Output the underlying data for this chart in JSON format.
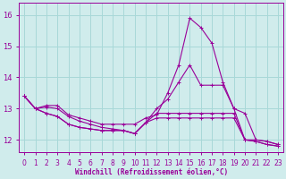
{
  "xlabel": "Windchill (Refroidissement éolien,°C)",
  "background_color": "#d0ecec",
  "grid_color": "#a8d8d8",
  "line_color": "#990099",
  "x_values": [
    0,
    1,
    2,
    3,
    4,
    5,
    6,
    7,
    8,
    9,
    10,
    11,
    12,
    13,
    14,
    15,
    16,
    17,
    18,
    19,
    20,
    21,
    22,
    23
  ],
  "series": [
    [
      13.4,
      13.0,
      13.1,
      13.1,
      12.8,
      12.7,
      12.6,
      12.5,
      12.5,
      12.5,
      12.5,
      12.7,
      12.8,
      13.5,
      14.4,
      15.9,
      15.6,
      15.1,
      13.85,
      13.0,
      12.0,
      12.0,
      11.95,
      11.85
    ],
    [
      13.4,
      13.0,
      13.05,
      13.0,
      12.75,
      12.6,
      12.5,
      12.4,
      12.35,
      12.3,
      12.2,
      12.55,
      13.0,
      13.3,
      13.85,
      14.4,
      13.75,
      13.75,
      13.75,
      13.0,
      12.85,
      12.0,
      11.95,
      11.85
    ],
    [
      13.4,
      13.0,
      12.85,
      12.75,
      12.5,
      12.4,
      12.35,
      12.3,
      12.3,
      12.3,
      12.2,
      12.55,
      12.85,
      12.85,
      12.85,
      12.85,
      12.85,
      12.85,
      12.85,
      12.85,
      12.0,
      11.95,
      11.85,
      11.8
    ],
    [
      13.4,
      13.0,
      12.85,
      12.75,
      12.5,
      12.4,
      12.35,
      12.3,
      12.3,
      12.3,
      12.2,
      12.55,
      12.7,
      12.7,
      12.7,
      12.7,
      12.7,
      12.7,
      12.7,
      12.7,
      12.0,
      11.95,
      11.85,
      11.8
    ]
  ],
  "ylim": [
    11.6,
    16.4
  ],
  "yticks": [
    12,
    13,
    14,
    15,
    16
  ],
  "xlim": [
    -0.5,
    23.5
  ],
  "xtick_labels": [
    "0",
    "1",
    "2",
    "3",
    "4",
    "5",
    "6",
    "7",
    "8",
    "9",
    "10",
    "11",
    "12",
    "13",
    "14",
    "15",
    "16",
    "17",
    "18",
    "19",
    "20",
    "21",
    "22",
    "23"
  ],
  "label_fontsize": 5.5,
  "tick_fontsize": 6.0,
  "figsize": [
    3.2,
    2.0
  ],
  "dpi": 100
}
